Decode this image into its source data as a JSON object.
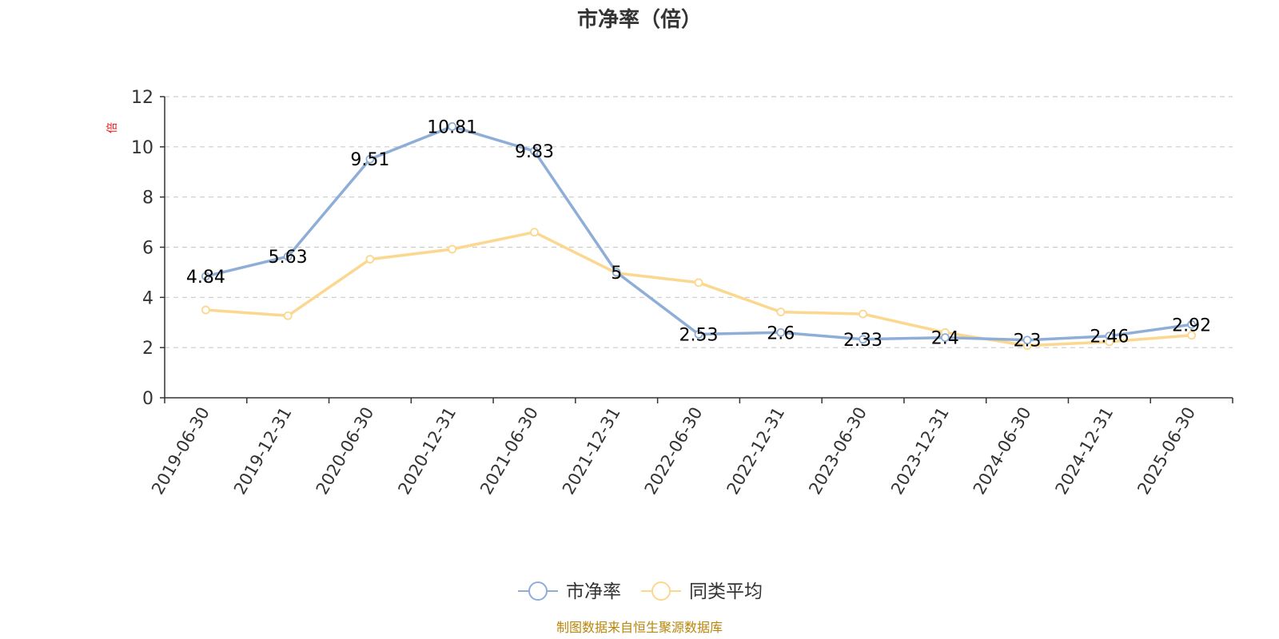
{
  "chart_data": {
    "type": "line",
    "title": "市净率（倍）",
    "ylabel": "倍",
    "ylim": [
      0,
      12
    ],
    "y_ticks": [
      0,
      2,
      4,
      6,
      8,
      10,
      12
    ],
    "grid": true,
    "legend_position": "bottom",
    "x": [
      "2019-06-30",
      "2019-12-31",
      "2020-06-30",
      "2020-12-31",
      "2021-06-30",
      "2021-12-31",
      "2022-06-30",
      "2022-12-31",
      "2023-06-30",
      "2023-12-31",
      "2024-06-30",
      "2024-12-31",
      "2025-06-30"
    ],
    "series": [
      {
        "name": "市净率",
        "color": "#8eaed8",
        "values": [
          4.84,
          5.63,
          9.51,
          10.81,
          9.83,
          5,
          2.53,
          2.6,
          2.33,
          2.4,
          2.3,
          2.46,
          2.92
        ],
        "data_labels": [
          "4.84",
          "5.63",
          "9.51",
          "10.81",
          "9.83",
          "5",
          "2.53",
          "2.6",
          "2.33",
          "2.4",
          "2.3",
          "2.46",
          "2.92"
        ]
      },
      {
        "name": "同类平均",
        "color": "#fbd78f",
        "values": [
          3.5,
          3.27,
          5.52,
          5.92,
          6.6,
          4.97,
          4.59,
          3.42,
          3.34,
          2.6,
          2.08,
          2.23,
          2.49
        ]
      }
    ]
  },
  "footer": {
    "source": "制图数据来自恒生聚源数据库"
  }
}
